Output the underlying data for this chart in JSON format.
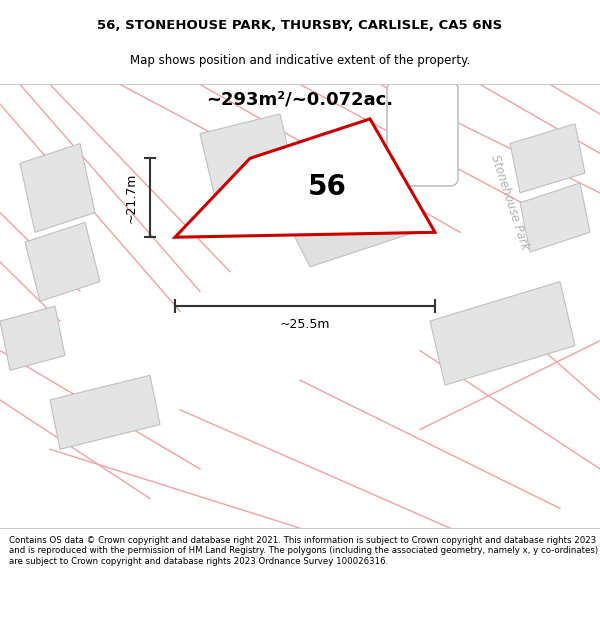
{
  "title_line1": "56, STONEHOUSE PARK, THURSBY, CARLISLE, CA5 6NS",
  "title_line2": "Map shows position and indicative extent of the property.",
  "area_text": "~293m²/~0.072ac.",
  "number_label": "56",
  "dim_width": "~25.5m",
  "dim_height": "~21.7m",
  "road_label": "Stonehouse Park",
  "footer_text": "Contains OS data © Crown copyright and database right 2021. This information is subject to Crown copyright and database rights 2023 and is reproduced with the permission of HM Land Registry. The polygons (including the associated geometry, namely x, y co-ordinates) are subject to Crown copyright and database rights 2023 Ordnance Survey 100026316.",
  "bg_color": "#f5f5f5",
  "plot_edge": "#cc0000",
  "road_lines_color": "#f5a0a0",
  "map_bg": "#f7f7f7",
  "title_bg": "#ffffff",
  "footer_bg": "#ffffff"
}
